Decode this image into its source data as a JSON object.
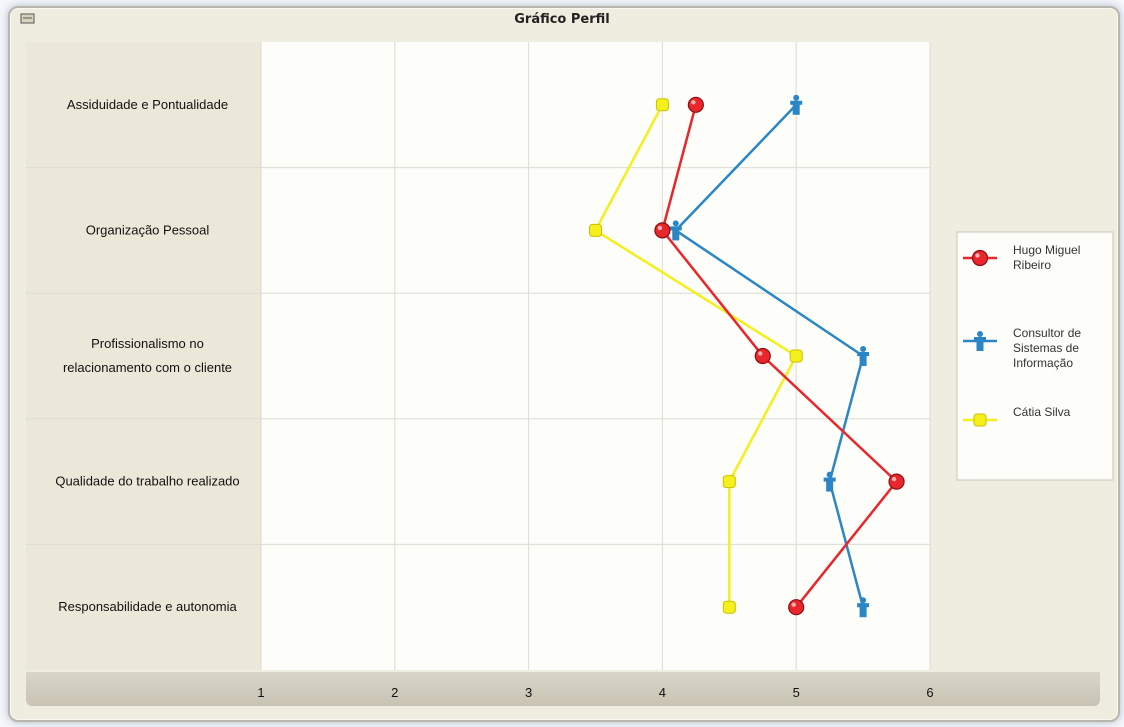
{
  "window": {
    "title": "Gráfico Perfil",
    "icon": "chart-window-icon"
  },
  "colors": {
    "series_red": "#e8262b",
    "series_blue": "#2b86c5",
    "series_yellow": "#f5ef1c",
    "plot_bg": "#fdfdfa",
    "category_bg": "#ece8d9"
  },
  "chart_data": {
    "type": "line",
    "orientation": "horizontal",
    "title": "Gráfico Perfil",
    "categories": [
      "Assiduidade e Pontualidade",
      "Organização Pessoal",
      "Profissionalismo no relacionamento com o cliente",
      "Qualidade do trabalho realizado",
      "Responsabilidade e autonomia"
    ],
    "xlim": [
      1,
      6
    ],
    "xticks": [
      "1",
      "2",
      "3",
      "4",
      "5",
      "6"
    ],
    "grid": true,
    "legend_position": "right",
    "series": [
      {
        "name": "Hugo Miguel Ribeiro",
        "legend_lines": [
          "Hugo Miguel",
          "Ribeiro"
        ],
        "color": "#e8262b",
        "marker": "ball",
        "values": [
          4.25,
          4.0,
          4.75,
          5.75,
          5.0
        ]
      },
      {
        "name": "Consultor de Sistemas de Informação",
        "legend_lines": [
          "Consultor de",
          "Sistemas de",
          "Informação"
        ],
        "color": "#2b86c5",
        "marker": "person",
        "values": [
          5.0,
          4.1,
          5.5,
          5.25,
          5.5
        ]
      },
      {
        "name": "Cátia Silva",
        "legend_lines": [
          "Cátia Silva"
        ],
        "color": "#f5ef1c",
        "marker": "square",
        "values": [
          4.0,
          3.5,
          5.0,
          4.5,
          4.5
        ]
      }
    ]
  }
}
